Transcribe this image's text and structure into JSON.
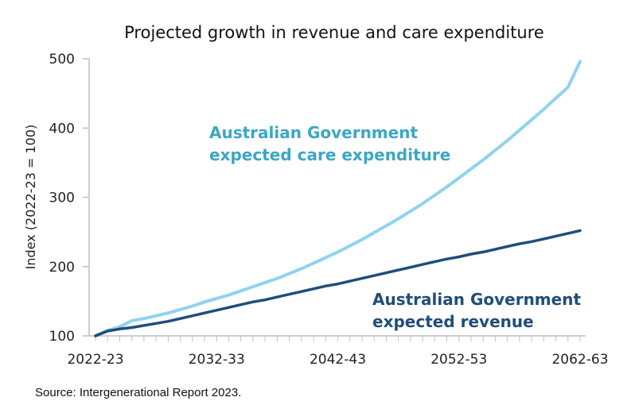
{
  "chart_data": {
    "type": "line",
    "title": "Projected growth in revenue and care expenditure",
    "xlabel": "",
    "ylabel": "Index (2022-23 = 100)",
    "ylim": [
      100,
      500
    ],
    "yticks": [
      100,
      200,
      300,
      400,
      500
    ],
    "xticks": [
      "2022-23",
      "2032-33",
      "2042-43",
      "2052-53",
      "2062-63"
    ],
    "x": [
      "2022-23",
      "2023-24",
      "2024-25",
      "2025-26",
      "2026-27",
      "2027-28",
      "2028-29",
      "2029-30",
      "2030-31",
      "2031-32",
      "2032-33",
      "2033-34",
      "2034-35",
      "2035-36",
      "2036-37",
      "2037-38",
      "2038-39",
      "2039-40",
      "2040-41",
      "2041-42",
      "2042-43",
      "2043-44",
      "2044-45",
      "2045-46",
      "2046-47",
      "2047-48",
      "2048-49",
      "2049-50",
      "2050-51",
      "2051-52",
      "2052-53",
      "2053-54",
      "2054-55",
      "2055-56",
      "2056-57",
      "2057-58",
      "2058-59",
      "2059-60",
      "2060-61",
      "2061-62",
      "2062-63"
    ],
    "series": [
      {
        "name": "Australian Government expected care expenditure",
        "color": "#8fd3ee",
        "label_lines": [
          "Australian Government",
          "expected care expenditure"
        ],
        "label_color": "#3ba7c4",
        "values": [
          100,
          108,
          113,
          122,
          125,
          129,
          133,
          138,
          143,
          149,
          154,
          159,
          165,
          171,
          177,
          183,
          190,
          197,
          205,
          213,
          221,
          230,
          239,
          249,
          259,
          269,
          280,
          291,
          303,
          315,
          328,
          341,
          354,
          368,
          382,
          397,
          412,
          427,
          443,
          459,
          496
        ]
      },
      {
        "name": "Australian Government expected revenue",
        "color": "#1f4e79",
        "label_lines": [
          "Australian Government",
          "expected revenue"
        ],
        "label_color": "#1f4e79",
        "values": [
          100,
          107,
          110,
          112,
          115,
          118,
          121,
          125,
          129,
          133,
          137,
          141,
          145,
          149,
          152,
          156,
          160,
          164,
          168,
          172,
          175,
          179,
          183,
          187,
          191,
          195,
          199,
          203,
          207,
          211,
          214,
          218,
          221,
          225,
          229,
          233,
          236,
          240,
          244,
          248,
          252
        ]
      }
    ],
    "grid": false,
    "legend": "none"
  },
  "source": "Source: Intergenerational Report 2023."
}
